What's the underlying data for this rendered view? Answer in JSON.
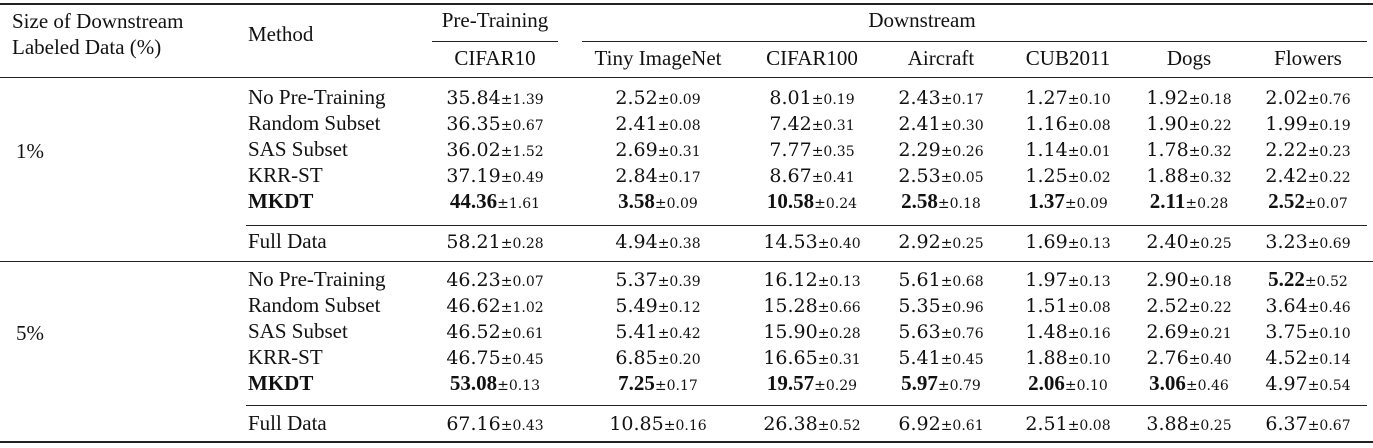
{
  "table": {
    "header": {
      "size_col": [
        "Size of Downstream",
        "Labeled Data (%)"
      ],
      "method_col": "Method",
      "pretraining_group": "Pre-Training",
      "downstream_group": "Downstream",
      "columns": [
        "CIFAR10",
        "Tiny ImageNet",
        "CIFAR100",
        "Aircraft",
        "CUB2011",
        "Dogs",
        "Flowers"
      ]
    },
    "groups": [
      {
        "size": "1%",
        "rows": [
          {
            "method": "No Pre-Training",
            "bold_method": false,
            "cells": [
              {
                "mean": "35.84",
                "std": "±1.39",
                "bold": false
              },
              {
                "mean": "2.52",
                "std": "±0.09",
                "bold": false
              },
              {
                "mean": "8.01",
                "std": "±0.19",
                "bold": false
              },
              {
                "mean": "2.43",
                "std": "±0.17",
                "bold": false
              },
              {
                "mean": "1.27",
                "std": "±0.10",
                "bold": false
              },
              {
                "mean": "1.92",
                "std": "±0.18",
                "bold": false
              },
              {
                "mean": "2.02",
                "std": "±0.76",
                "bold": false
              }
            ]
          },
          {
            "method": "Random Subset",
            "bold_method": false,
            "cells": [
              {
                "mean": "36.35",
                "std": "±0.67",
                "bold": false
              },
              {
                "mean": "2.41",
                "std": "±0.08",
                "bold": false
              },
              {
                "mean": "7.42",
                "std": "±0.31",
                "bold": false
              },
              {
                "mean": "2.41",
                "std": "±0.30",
                "bold": false
              },
              {
                "mean": "1.16",
                "std": "±0.08",
                "bold": false
              },
              {
                "mean": "1.90",
                "std": "±0.22",
                "bold": false
              },
              {
                "mean": "1.99",
                "std": "±0.19",
                "bold": false
              }
            ]
          },
          {
            "method": "SAS Subset",
            "bold_method": false,
            "cells": [
              {
                "mean": "36.02",
                "std": "±1.52",
                "bold": false
              },
              {
                "mean": "2.69",
                "std": "±0.31",
                "bold": false
              },
              {
                "mean": "7.77",
                "std": "±0.35",
                "bold": false
              },
              {
                "mean": "2.29",
                "std": "±0.26",
                "bold": false
              },
              {
                "mean": "1.14",
                "std": "±0.01",
                "bold": false
              },
              {
                "mean": "1.78",
                "std": "±0.32",
                "bold": false
              },
              {
                "mean": "2.22",
                "std": "±0.23",
                "bold": false
              }
            ]
          },
          {
            "method": "KRR-ST",
            "bold_method": false,
            "cells": [
              {
                "mean": "37.19",
                "std": "±0.49",
                "bold": false
              },
              {
                "mean": "2.84",
                "std": "±0.17",
                "bold": false
              },
              {
                "mean": "8.67",
                "std": "±0.41",
                "bold": false
              },
              {
                "mean": "2.53",
                "std": "±0.05",
                "bold": false
              },
              {
                "mean": "1.25",
                "std": "±0.02",
                "bold": false
              },
              {
                "mean": "1.88",
                "std": "±0.32",
                "bold": false
              },
              {
                "mean": "2.42",
                "std": "±0.22",
                "bold": false
              }
            ]
          },
          {
            "method": "MKDT",
            "bold_method": true,
            "cells": [
              {
                "mean": "44.36",
                "std": "±1.61",
                "bold": true
              },
              {
                "mean": "3.58",
                "std": "±0.09",
                "bold": true
              },
              {
                "mean": "10.58",
                "std": "±0.24",
                "bold": true
              },
              {
                "mean": "2.58",
                "std": "±0.18",
                "bold": true
              },
              {
                "mean": "1.37",
                "std": "±0.09",
                "bold": true
              },
              {
                "mean": "2.11",
                "std": "±0.28",
                "bold": true
              },
              {
                "mean": "2.52",
                "std": "±0.07",
                "bold": true
              }
            ]
          },
          {
            "method": "Full Data",
            "bold_method": false,
            "cells": [
              {
                "mean": "58.21",
                "std": "±0.28",
                "bold": false
              },
              {
                "mean": "4.94",
                "std": "±0.38",
                "bold": false
              },
              {
                "mean": "14.53",
                "std": "±0.40",
                "bold": false
              },
              {
                "mean": "2.92",
                "std": "±0.25",
                "bold": false
              },
              {
                "mean": "1.69",
                "std": "±0.13",
                "bold": false
              },
              {
                "mean": "2.40",
                "std": "±0.25",
                "bold": false
              },
              {
                "mean": "3.23",
                "std": "±0.69",
                "bold": false
              }
            ]
          }
        ]
      },
      {
        "size": "5%",
        "rows": [
          {
            "method": "No Pre-Training",
            "bold_method": false,
            "cells": [
              {
                "mean": "46.23",
                "std": "±0.07",
                "bold": false
              },
              {
                "mean": "5.37",
                "std": "±0.39",
                "bold": false
              },
              {
                "mean": "16.12",
                "std": "±0.13",
                "bold": false
              },
              {
                "mean": "5.61",
                "std": "±0.68",
                "bold": false
              },
              {
                "mean": "1.97",
                "std": "±0.13",
                "bold": false
              },
              {
                "mean": "2.90",
                "std": "±0.18",
                "bold": false
              },
              {
                "mean": "5.22",
                "std": "±0.52",
                "bold": true
              }
            ]
          },
          {
            "method": "Random Subset",
            "bold_method": false,
            "cells": [
              {
                "mean": "46.62",
                "std": "±1.02",
                "bold": false
              },
              {
                "mean": "5.49",
                "std": "±0.12",
                "bold": false
              },
              {
                "mean": "15.28",
                "std": "±0.66",
                "bold": false
              },
              {
                "mean": "5.35",
                "std": "±0.96",
                "bold": false
              },
              {
                "mean": "1.51",
                "std": "±0.08",
                "bold": false
              },
              {
                "mean": "2.52",
                "std": "±0.22",
                "bold": false
              },
              {
                "mean": "3.64",
                "std": "±0.46",
                "bold": false
              }
            ]
          },
          {
            "method": "SAS Subset",
            "bold_method": false,
            "cells": [
              {
                "mean": "46.52",
                "std": "±0.61",
                "bold": false
              },
              {
                "mean": "5.41",
                "std": "±0.42",
                "bold": false
              },
              {
                "mean": "15.90",
                "std": "±0.28",
                "bold": false
              },
              {
                "mean": "5.63",
                "std": "±0.76",
                "bold": false
              },
              {
                "mean": "1.48",
                "std": "±0.16",
                "bold": false
              },
              {
                "mean": "2.69",
                "std": "±0.21",
                "bold": false
              },
              {
                "mean": "3.75",
                "std": "±0.10",
                "bold": false
              }
            ]
          },
          {
            "method": "KRR-ST",
            "bold_method": false,
            "cells": [
              {
                "mean": "46.75",
                "std": "±0.45",
                "bold": false
              },
              {
                "mean": "6.85",
                "std": "±0.20",
                "bold": false
              },
              {
                "mean": "16.65",
                "std": "±0.31",
                "bold": false
              },
              {
                "mean": "5.41",
                "std": "±0.45",
                "bold": false
              },
              {
                "mean": "1.88",
                "std": "±0.10",
                "bold": false
              },
              {
                "mean": "2.76",
                "std": "±0.40",
                "bold": false
              },
              {
                "mean": "4.52",
                "std": "±0.14",
                "bold": false
              }
            ]
          },
          {
            "method": "MKDT",
            "bold_method": true,
            "cells": [
              {
                "mean": "53.08",
                "std": "±0.13",
                "bold": true
              },
              {
                "mean": "7.25",
                "std": "±0.17",
                "bold": true
              },
              {
                "mean": "19.57",
                "std": "±0.29",
                "bold": true
              },
              {
                "mean": "5.97",
                "std": "±0.79",
                "bold": true
              },
              {
                "mean": "2.06",
                "std": "±0.10",
                "bold": true
              },
              {
                "mean": "3.06",
                "std": "±0.46",
                "bold": true
              },
              {
                "mean": "4.97",
                "std": "±0.54",
                "bold": false
              }
            ]
          },
          {
            "method": "Full Data",
            "bold_method": false,
            "cells": [
              {
                "mean": "67.16",
                "std": "±0.43",
                "bold": false
              },
              {
                "mean": "10.85",
                "std": "±0.16",
                "bold": false
              },
              {
                "mean": "26.38",
                "std": "±0.52",
                "bold": false
              },
              {
                "mean": "6.92",
                "std": "±0.61",
                "bold": false
              },
              {
                "mean": "2.51",
                "std": "±0.08",
                "bold": false
              },
              {
                "mean": "3.88",
                "std": "±0.25",
                "bold": false
              },
              {
                "mean": "6.37",
                "std": "±0.67",
                "bold": false
              }
            ]
          }
        ]
      }
    ]
  }
}
